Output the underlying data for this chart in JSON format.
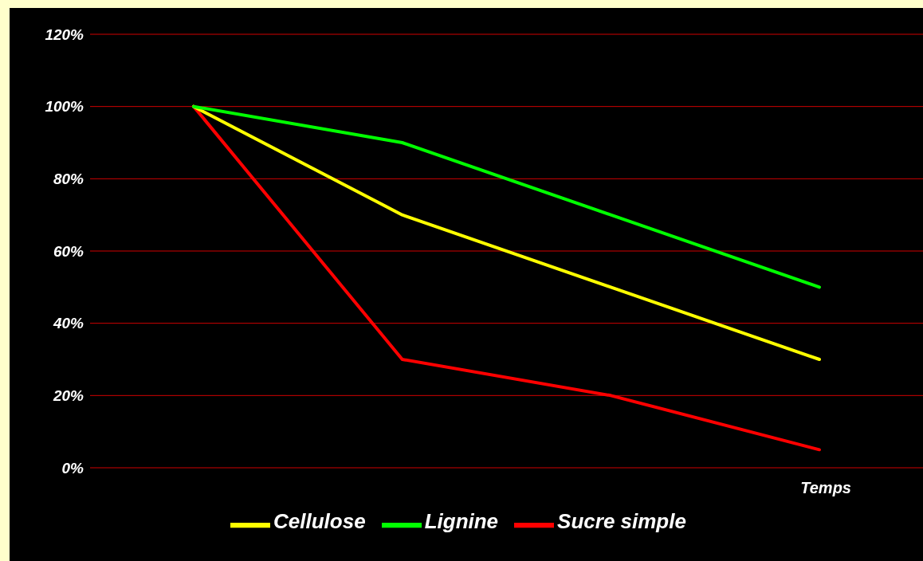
{
  "chart_data": {
    "type": "line",
    "xlabel": "Temps",
    "categories": [
      null,
      null,
      null,
      null
    ],
    "series": [
      {
        "name": "Sucre simple",
        "color": "#ff0000",
        "values": [
          100,
          30,
          20,
          5
        ]
      },
      {
        "name": "Cellulose",
        "color": "#ffff00",
        "values": [
          100,
          70,
          50,
          30
        ]
      },
      {
        "name": "Lignine",
        "color": "#00ff00",
        "values": [
          100,
          90,
          70,
          50
        ]
      }
    ],
    "ylim": [
      0,
      120
    ],
    "yticks": [
      {
        "value": 0,
        "label": "0%"
      },
      {
        "value": 20,
        "label": "20%"
      },
      {
        "value": 40,
        "label": "40%"
      },
      {
        "value": 60,
        "label": "60%"
      },
      {
        "value": 80,
        "label": "80%"
      },
      {
        "value": 100,
        "label": "100%"
      },
      {
        "value": 120,
        "label": "120%"
      }
    ],
    "grid": "y",
    "legend": "bottom",
    "marker": "none",
    "line_style": "solid",
    "tick_labels": "y"
  }
}
